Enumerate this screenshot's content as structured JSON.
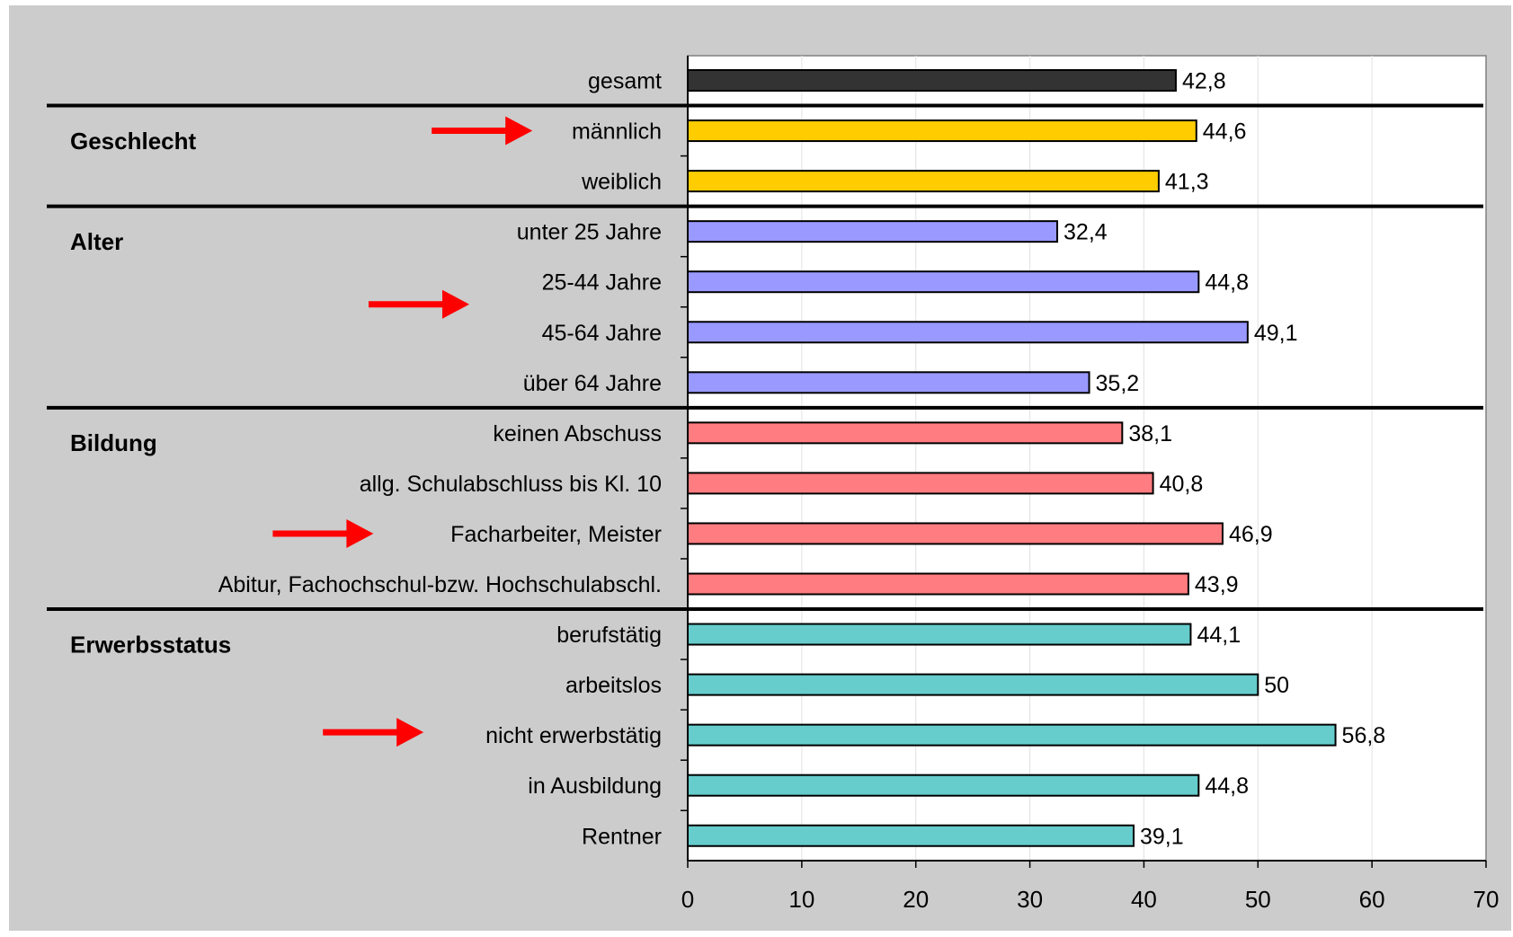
{
  "chart_data": {
    "type": "bar",
    "orientation": "horizontal",
    "title": "",
    "xlabel": "",
    "ylabel": "",
    "xlim": [
      0,
      70
    ],
    "x_ticks": [
      "0",
      "10",
      "20",
      "30",
      "40",
      "50",
      "60",
      "70"
    ],
    "grid": true,
    "legend": "none",
    "colors": {
      "gesamt": "#333333",
      "Geschlecht": "#ffcc00",
      "Alter": "#9999ff",
      "Bildung": "#ff7c80",
      "Erwerbsstatus": "#66cccc",
      "arrow": "#ff0000",
      "frame_background": "#cccccc",
      "plot_background": "#ffffff"
    },
    "groups": [
      {
        "label": "",
        "key": "gesamt",
        "bars": [
          {
            "category": "gesamt",
            "value": 42.8,
            "value_label": "42,8"
          }
        ]
      },
      {
        "label": "Geschlecht",
        "key": "Geschlecht",
        "bars": [
          {
            "category": "männlich",
            "value": 44.6,
            "value_label": "44,6",
            "highlighted": true
          },
          {
            "category": "weiblich",
            "value": 41.3,
            "value_label": "41,3"
          }
        ]
      },
      {
        "label": "Alter",
        "key": "Alter",
        "bars": [
          {
            "category": "unter 25 Jahre",
            "value": 32.4,
            "value_label": "32,4"
          },
          {
            "category": "25-44 Jahre",
            "value": 44.8,
            "value_label": "44,8"
          },
          {
            "category": "45-64 Jahre",
            "value": 49.1,
            "value_label": "49,1"
          },
          {
            "category": "über 64 Jahre",
            "value": 35.2,
            "value_label": "35,2"
          }
        ]
      },
      {
        "label": "Bildung",
        "key": "Bildung",
        "bars": [
          {
            "category": "keinen Abschuss",
            "value": 38.1,
            "value_label": "38,1"
          },
          {
            "category": "allg. Schulabschluss bis Kl. 10",
            "value": 40.8,
            "value_label": "40,8"
          },
          {
            "category": "Facharbeiter, Meister",
            "value": 46.9,
            "value_label": "46,9",
            "highlighted": true
          },
          {
            "category": "Abitur, Fachochschul-bzw. Hochschulabschl.",
            "value": 43.9,
            "value_label": "43,9"
          }
        ]
      },
      {
        "label": "Erwerbsstatus",
        "key": "Erwerbsstatus",
        "bars": [
          {
            "category": "berufstätig",
            "value": 44.1,
            "value_label": "44,1"
          },
          {
            "category": "arbeitslos",
            "value": 50,
            "value_label": "50"
          },
          {
            "category": "nicht erwerbstätig",
            "value": 56.8,
            "value_label": "56,8"
          },
          {
            "category": "in Ausbildung",
            "value": 44.8,
            "value_label": "44,8"
          },
          {
            "category": "Rentner",
            "value": 39.1,
            "value_label": "39,1"
          }
        ]
      }
    ]
  }
}
